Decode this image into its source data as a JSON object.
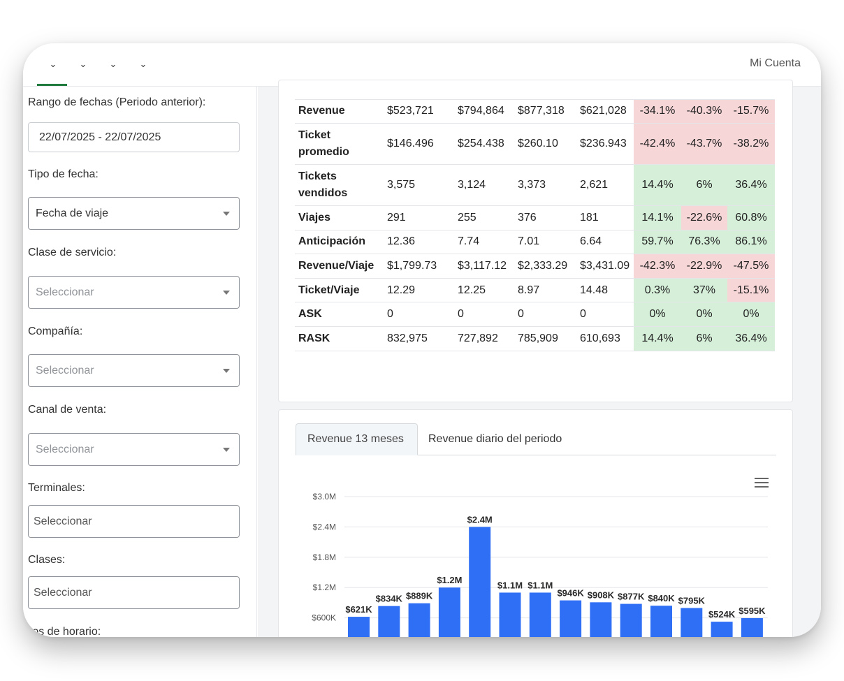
{
  "topbar": {
    "nav_items": [
      {
        "icon": "chevron-down-icon"
      },
      {
        "icon": "chevron-down-icon"
      },
      {
        "icon": "chevron-down-icon"
      },
      {
        "icon": "chevron-down-icon"
      }
    ],
    "account_label": "Mi Cuenta"
  },
  "sidebar": {
    "date_range_label": "Rango de fechas (Periodo anterior):",
    "date_range_value": "22/07/2025 - 22/07/2025",
    "date_type_label": "Tipo de fecha:",
    "date_type_value": "Fecha de viaje",
    "service_class_label": "Clase de servicio:",
    "service_class_value": "Seleccionar",
    "company_label": "Compañía:",
    "company_value": "Seleccionar",
    "sales_channel_label": "Canal de venta:",
    "sales_channel_value": "Seleccionar",
    "terminals_label": "Terminales:",
    "terminals_placeholder": "Seleccionar",
    "classes_label": "Clases:",
    "classes_placeholder": "Seleccionar",
    "schedule_label": "...os de horario:"
  },
  "kpi_table": {
    "rows": [
      {
        "metric": "Revenue",
        "v": [
          "$523,721",
          "$794,864",
          "$877,318",
          "$621,028"
        ],
        "d": [
          "-34.1%",
          "-40.3%",
          "-15.7%"
        ],
        "s": [
          "neg",
          "neg",
          "neg"
        ]
      },
      {
        "metric": "Ticket promedio",
        "v": [
          "$146.496",
          "$254.438",
          "$260.10",
          "$236.943"
        ],
        "d": [
          "-42.4%",
          "-43.7%",
          "-38.2%"
        ],
        "s": [
          "neg",
          "neg",
          "neg"
        ],
        "tall": true
      },
      {
        "metric": "Tickets vendidos",
        "v": [
          "3,575",
          "3,124",
          "3,373",
          "2,621"
        ],
        "d": [
          "14.4%",
          "6%",
          "36.4%"
        ],
        "s": [
          "pos",
          "pos",
          "pos"
        ],
        "tall": true
      },
      {
        "metric": "Viajes",
        "v": [
          "291",
          "255",
          "376",
          "181"
        ],
        "d": [
          "14.1%",
          "-22.6%",
          "60.8%"
        ],
        "s": [
          "pos",
          "neg",
          "pos"
        ]
      },
      {
        "metric": "Anticipación",
        "v": [
          "12.36",
          "7.74",
          "7.01",
          "6.64"
        ],
        "d": [
          "59.7%",
          "76.3%",
          "86.1%"
        ],
        "s": [
          "pos",
          "pos",
          "pos"
        ]
      },
      {
        "metric": "Revenue/Viaje",
        "v": [
          "$1,799.73",
          "$3,117.12",
          "$2,333.29",
          "$3,431.09"
        ],
        "d": [
          "-42.3%",
          "-22.9%",
          "-47.5%"
        ],
        "s": [
          "neg",
          "neg",
          "neg"
        ]
      },
      {
        "metric": "Ticket/Viaje",
        "v": [
          "12.29",
          "12.25",
          "8.97",
          "14.48"
        ],
        "d": [
          "0.3%",
          "37%",
          "-15.1%"
        ],
        "s": [
          "pos",
          "pos",
          "neg"
        ]
      },
      {
        "metric": "ASK",
        "v": [
          "0",
          "0",
          "0",
          "0"
        ],
        "d": [
          "0%",
          "0%",
          "0%"
        ],
        "s": [
          "pos",
          "pos",
          "pos"
        ]
      },
      {
        "metric": "RASK",
        "v": [
          "832,975",
          "727,892",
          "785,909",
          "610,693"
        ],
        "d": [
          "14.4%",
          "6%",
          "36.4%"
        ],
        "s": [
          "pos",
          "pos",
          "pos"
        ]
      }
    ]
  },
  "chart_panel": {
    "tabs": [
      "Revenue 13 meses",
      "Revenue diario del periodo"
    ],
    "menu_icon": "hamburger-menu-icon"
  },
  "chart_data": {
    "type": "bar",
    "title": "",
    "xlabel": "",
    "ylabel": "",
    "ylim": [
      0,
      3000000
    ],
    "yticks": [
      600000,
      1200000,
      1800000,
      2400000,
      3000000
    ],
    "ytick_labels": [
      "$600K",
      "$1.2M",
      "$1.8M",
      "$2.4M",
      "$3.0M"
    ],
    "grid": true,
    "bar_color": "#2f6ff5",
    "values": [
      621000,
      834000,
      889000,
      1200000,
      2400000,
      1100000,
      1100000,
      946000,
      908000,
      877000,
      840000,
      795000,
      524000,
      595000
    ],
    "labels": [
      "$621K",
      "$834K",
      "$889K",
      "$1.2M",
      "$2.4M",
      "$1.1M",
      "$1.1M",
      "$946K",
      "$908K",
      "$877K",
      "$840K",
      "$795K",
      "$524K",
      "$595K"
    ]
  }
}
